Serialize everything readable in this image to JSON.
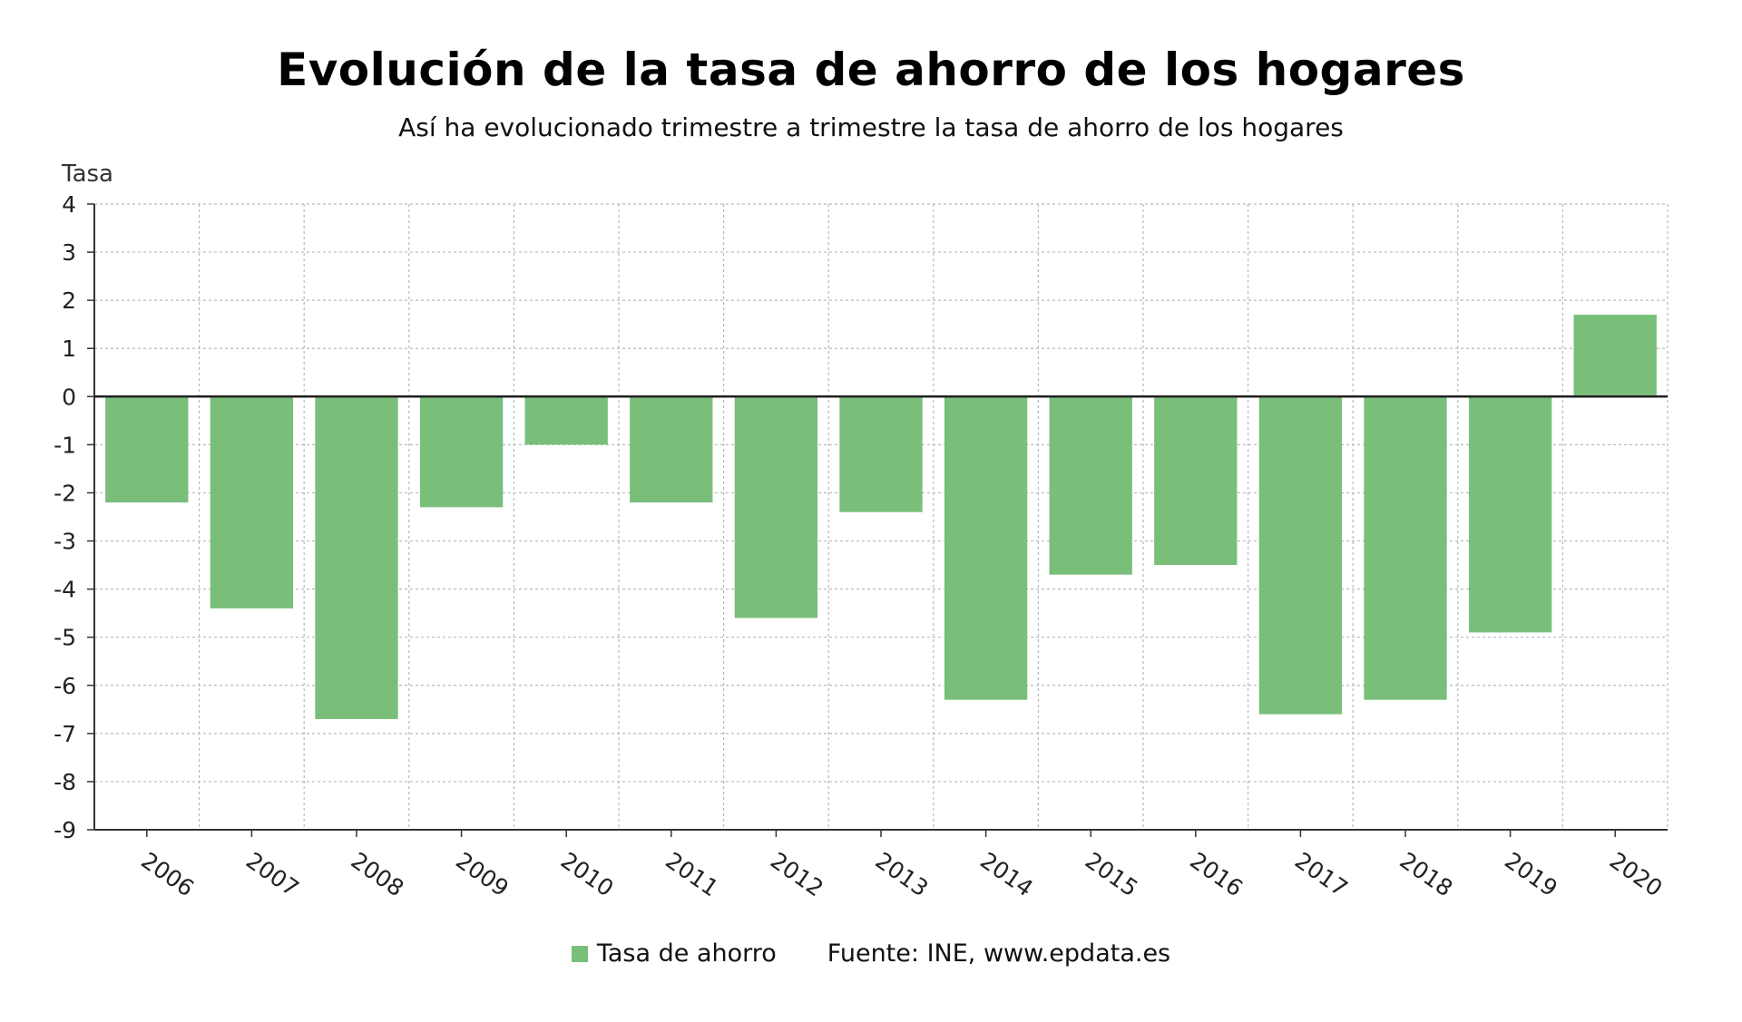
{
  "chart_data": {
    "type": "bar",
    "title": "Evolución de la tasa de ahorro de los hogares",
    "subtitle": "Así ha evolucionado trimestre a trimestre la tasa de ahorro de los hogares",
    "xlabel": "",
    "ylabel": "Tasa",
    "ylim": [
      -9,
      4
    ],
    "yticks": [
      4,
      3,
      2,
      1,
      0,
      -1,
      -2,
      -3,
      -4,
      -5,
      -6,
      -7,
      -8,
      -9
    ],
    "grid": true,
    "legend_position": "bottom",
    "categories": [
      "2006",
      "2007",
      "2008",
      "2009",
      "2010",
      "2011",
      "2012",
      "2013",
      "2014",
      "2015",
      "2016",
      "2017",
      "2018",
      "2019",
      "2020"
    ],
    "series": [
      {
        "name": "Tasa de ahorro",
        "color": "#79bf7a",
        "values": [
          -2.2,
          -4.4,
          -6.7,
          -2.3,
          -1.0,
          -2.2,
          -4.6,
          -2.4,
          -6.3,
          -3.7,
          -3.5,
          -6.6,
          -6.3,
          -4.9,
          1.7
        ]
      }
    ],
    "source": "Fuente: INE, www.epdata.es"
  }
}
